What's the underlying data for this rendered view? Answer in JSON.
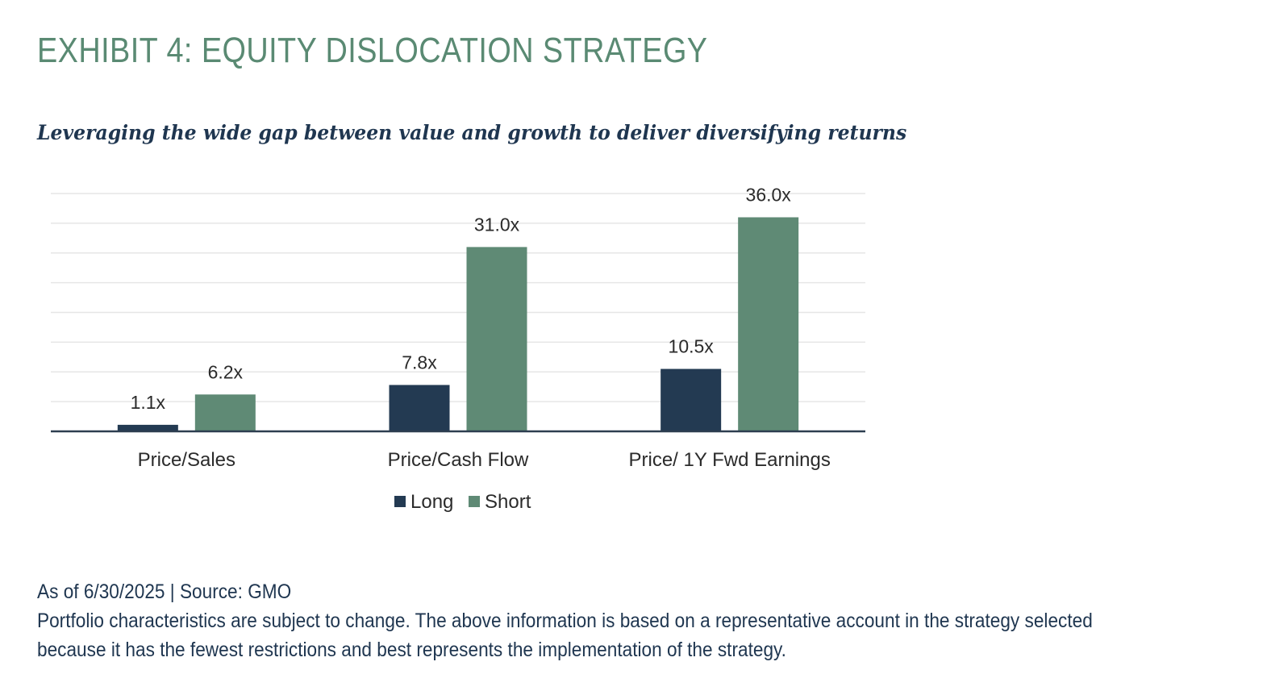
{
  "header": {
    "title": "EXHIBIT 4: EQUITY DISLOCATION STRATEGY",
    "subtitle": "Leveraging the wide gap between value and growth to deliver diversifying returns"
  },
  "colors": {
    "title": "#5a8a73",
    "text": "#1f3650",
    "long": "#233a52",
    "short": "#5f8a75",
    "grid": "#e6e6e6",
    "axis": "#2d3e50"
  },
  "chart_data": {
    "type": "bar",
    "categories": [
      "Price/Sales",
      "Price/Cash Flow",
      "Price/ 1Y Fwd Earnings"
    ],
    "series": [
      {
        "name": "Long",
        "values": [
          1.1,
          7.8,
          10.5
        ],
        "labels": [
          "1.1x",
          "7.8x",
          "10.5x"
        ],
        "color": "#233a52"
      },
      {
        "name": "Short",
        "values": [
          6.2,
          31.0,
          36.0
        ],
        "labels": [
          "6.2x",
          "31.0x",
          "36.0x"
        ],
        "color": "#5f8a75"
      }
    ],
    "ylim": [
      0,
      40
    ],
    "grid": true,
    "legend_position": "bottom-center"
  },
  "footer": {
    "source": "As of 6/30/2025 | Source: GMO",
    "note_line1": "Portfolio characteristics are subject to change. The above information is based on a representative account in the strategy selected",
    "note_line2": "because it has the fewest restrictions and best represents the implementation of the strategy."
  }
}
